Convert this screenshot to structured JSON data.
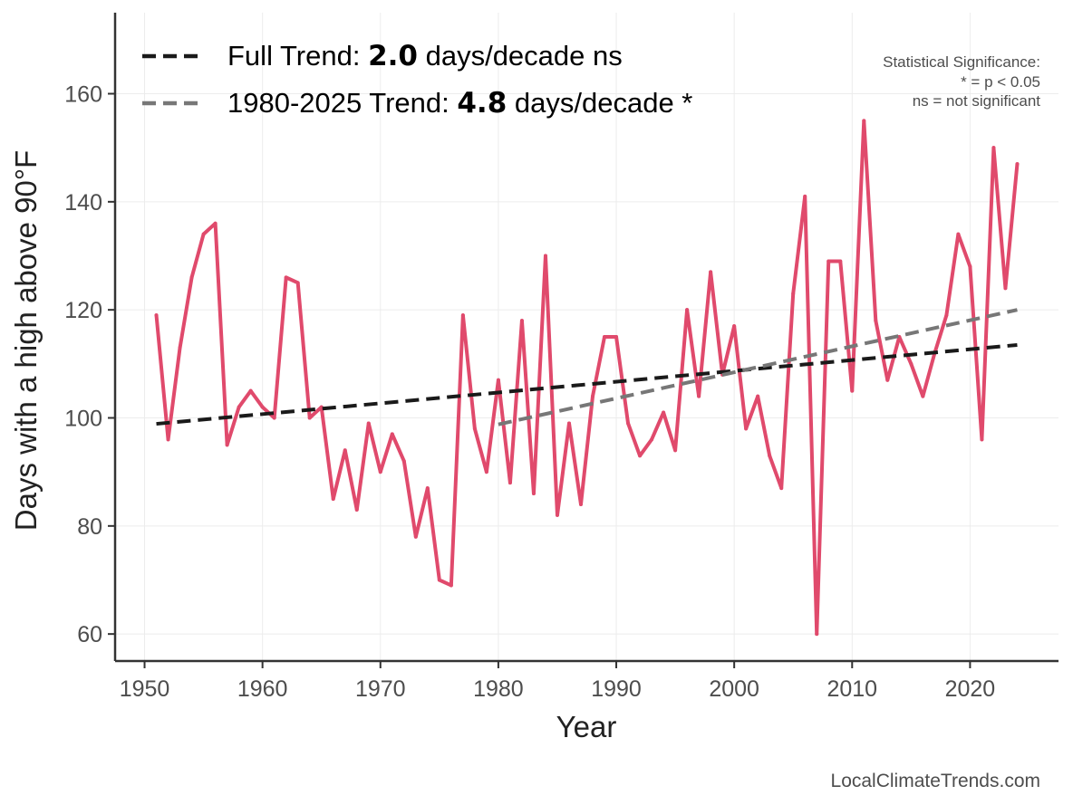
{
  "chart_data": {
    "type": "line",
    "title": "",
    "xlabel": "Year",
    "ylabel": "Days with a high above 90°F",
    "xlim": [
      1947.5,
      2027.5
    ],
    "ylim": [
      55,
      175
    ],
    "xticks": [
      1950,
      1960,
      1970,
      1980,
      1990,
      2000,
      2010,
      2020
    ],
    "yticks": [
      60,
      80,
      100,
      120,
      140,
      160
    ],
    "grid": true,
    "series": [
      {
        "name": "Days with a high above 90°F",
        "color": "#e04a6c",
        "x": [
          1951,
          1952,
          1953,
          1954,
          1955,
          1956,
          1957,
          1958,
          1959,
          1960,
          1961,
          1962,
          1963,
          1964,
          1965,
          1966,
          1967,
          1968,
          1969,
          1970,
          1971,
          1972,
          1973,
          1974,
          1975,
          1976,
          1977,
          1978,
          1979,
          1980,
          1981,
          1982,
          1983,
          1984,
          1985,
          1986,
          1987,
          1988,
          1989,
          1990,
          1991,
          1992,
          1993,
          1994,
          1995,
          1996,
          1997,
          1998,
          1999,
          2000,
          2001,
          2002,
          2003,
          2004,
          2005,
          2006,
          2007,
          2008,
          2009,
          2010,
          2011,
          2012,
          2013,
          2014,
          2015,
          2016,
          2017,
          2018,
          2019,
          2020,
          2021,
          2022,
          2023,
          2024
        ],
        "values": [
          119,
          96,
          113,
          126,
          134,
          136,
          95,
          102,
          105,
          102,
          100,
          126,
          125,
          100,
          102,
          85,
          94,
          83,
          99,
          90,
          97,
          92,
          78,
          87,
          70,
          69,
          119,
          98,
          90,
          107,
          88,
          118,
          86,
          130,
          82,
          99,
          84,
          104,
          115,
          115,
          99,
          93,
          96,
          101,
          94,
          120,
          104,
          127,
          108,
          117,
          98,
          104,
          93,
          87,
          123,
          141,
          60,
          129,
          129,
          105,
          155,
          118,
          107,
          115,
          110,
          104,
          112,
          119,
          134,
          128,
          96,
          150,
          124,
          147
        ]
      }
    ],
    "trends": [
      {
        "name": "Full Trend",
        "color": "#1a1a1a",
        "style": "dashed",
        "x": [
          1951,
          2024
        ],
        "y": [
          98.9,
          113.5
        ]
      },
      {
        "name": "1980-2025 Trend",
        "color": "#777777",
        "style": "dashed",
        "x": [
          1980,
          2024
        ],
        "y": [
          98.8,
          120.0
        ]
      }
    ],
    "legend": {
      "position": "top-left",
      "items": [
        {
          "prefix": "Full Trend: ",
          "value": "2.0",
          "suffix": " days/decade ns",
          "color": "#1a1a1a"
        },
        {
          "prefix": "1980-2025 Trend: ",
          "value": "4.8",
          "suffix": " days/decade *",
          "color": "#777777"
        }
      ]
    },
    "annotations": [
      "Statistical Significance:",
      "* = p < 0.05",
      "ns = not significant"
    ],
    "credit": "LocalClimateTrends.com"
  }
}
